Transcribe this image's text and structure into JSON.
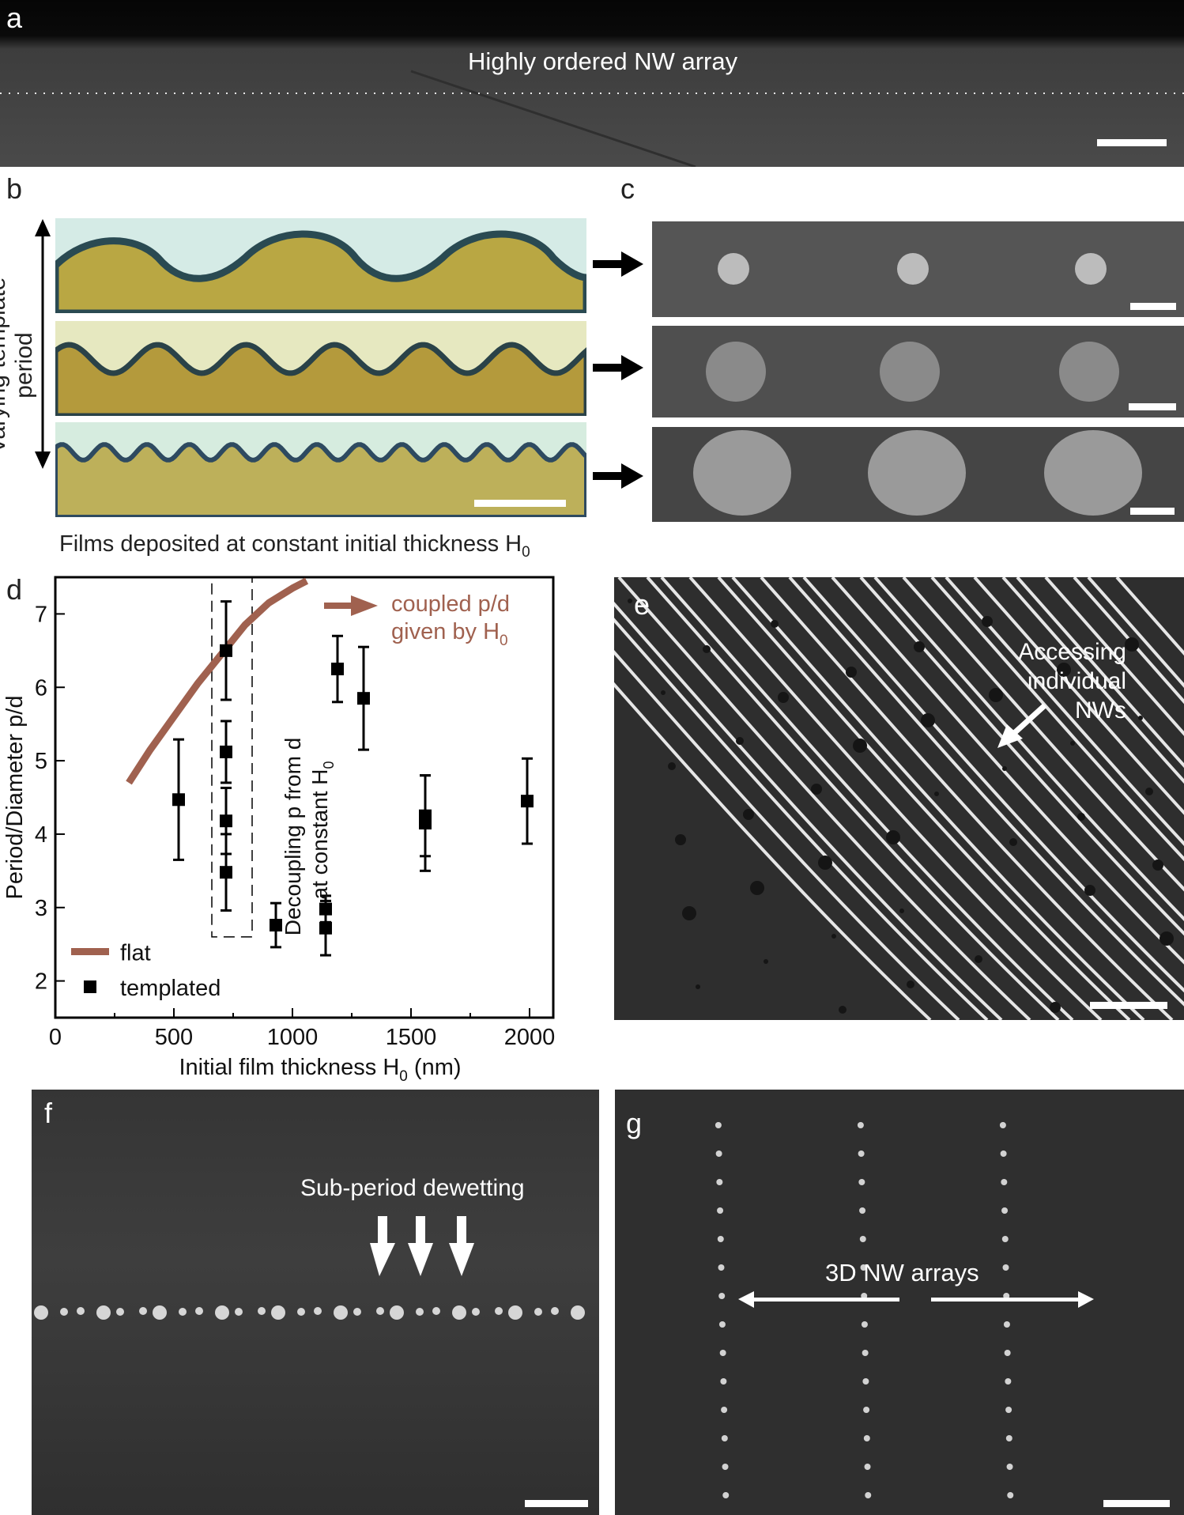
{
  "panels": {
    "a": {
      "label": "a",
      "caption": "Highly ordered NW array"
    },
    "b": {
      "label": "b",
      "side_label": "Varying template period",
      "bottom_label_main": "Films deposited at constant initial thickness H",
      "bottom_label_sub": "0"
    },
    "c": {
      "label": "c"
    },
    "d": {
      "label": "d"
    },
    "e": {
      "label": "e",
      "annotation_lines": [
        "Accessing",
        "individual",
        "NWs"
      ]
    },
    "f": {
      "label": "f",
      "caption": "Sub-period dewetting"
    },
    "g": {
      "label": "g",
      "caption": "3D NW arrays"
    }
  },
  "colors": {
    "flat_line": "#a0614f",
    "templated_marker": "#000000",
    "sem_bg": "#3a3a3a",
    "optical_light": "#d7ecea",
    "optical_film": "#b9a640"
  },
  "chart_data": {
    "type": "scatter",
    "xlabel_main": "Initial film thickness H",
    "xlabel_sub": "0",
    "xlabel_unit": "(nm)",
    "ylabel": "Period/Diameter p/d",
    "xlim": [
      0,
      2100
    ],
    "ylim": [
      1.5,
      7.5
    ],
    "xticks": [
      0,
      500,
      1000,
      1500,
      2000
    ],
    "yticks": [
      2,
      3,
      4,
      5,
      6,
      7
    ],
    "legend": {
      "flat": "flat",
      "templated": "templated",
      "placement": "bottom-left"
    },
    "flat_line": {
      "name": "flat",
      "x": [
        310,
        400,
        500,
        600,
        700,
        800,
        900,
        1000,
        1060
      ],
      "y": [
        4.7,
        5.15,
        5.6,
        6.05,
        6.45,
        6.85,
        7.15,
        7.35,
        7.45
      ]
    },
    "templated": {
      "name": "templated",
      "points": [
        {
          "x": 520,
          "y": 4.47,
          "err": 0.82
        },
        {
          "x": 720,
          "y": 6.5,
          "err": 0.67
        },
        {
          "x": 720,
          "y": 5.12,
          "err": 0.42
        },
        {
          "x": 720,
          "y": 4.18,
          "err": 0.45
        },
        {
          "x": 720,
          "y": 3.48,
          "err": 0.52
        },
        {
          "x": 930,
          "y": 2.76,
          "err": 0.3
        },
        {
          "x": 1140,
          "y": 2.98,
          "err": 0.18
        },
        {
          "x": 1140,
          "y": 2.72,
          "err": 0.37
        },
        {
          "x": 1190,
          "y": 6.25,
          "err": 0.45
        },
        {
          "x": 1300,
          "y": 5.85,
          "err": 0.7
        },
        {
          "x": 1560,
          "y": 4.25,
          "err": 0.55
        },
        {
          "x": 1560,
          "y": 4.15,
          "err": 0.65
        },
        {
          "x": 1990,
          "y": 4.45,
          "err": 0.58
        }
      ]
    },
    "annotations": {
      "coupled_line1": "coupled p/d",
      "coupled_line2_main": "given by H",
      "coupled_line2_sub": "0",
      "decoupling_line1": "Decoupling p from d",
      "decoupling_line2_main": "at constant H",
      "decoupling_line2_sub": "0"
    }
  }
}
